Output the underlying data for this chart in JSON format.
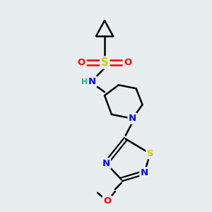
{
  "background_color": "#e8edf0",
  "bond_color": "#000000",
  "atom_colors": {
    "N": "#0000ff",
    "S_sulfone": "#cccc00",
    "S_thiad": "#cccc00",
    "O": "#ff0000",
    "H": "#20b2aa",
    "C": "#000000"
  },
  "figsize": [
    3.0,
    3.0
  ],
  "dpi": 100
}
